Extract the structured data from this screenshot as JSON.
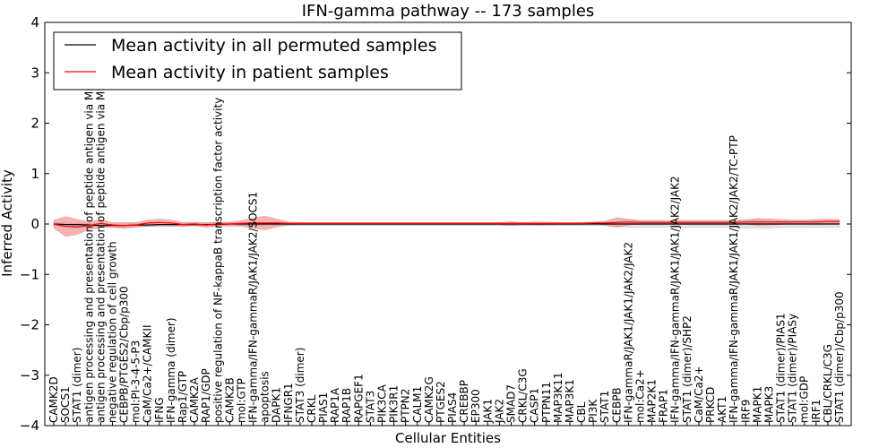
{
  "chart_data": {
    "type": "line",
    "title": "IFN-gamma pathway -- 173 samples",
    "xlabel": "Cellular Entities",
    "ylabel": "Inferred Activity",
    "ylim": [
      -4,
      4
    ],
    "yticks": [
      -4,
      -3,
      -2,
      -1,
      0,
      1,
      2,
      3,
      4
    ],
    "ytick_labels": [
      "−4",
      "−3",
      "−2",
      "−1",
      "0",
      "1",
      "2",
      "3",
      "4"
    ],
    "legend_position": "top-left",
    "categories": [
      "CAMK2D",
      "SOCS1",
      "STAT1 (dimer)",
      "antigen processing and presentation of peptide antigen via MHC class I",
      "antigen processing and presentation of peptide antigen via MHC class II",
      "negative regulation of cell growth",
      "CEBPB/PTGES2/Cbp/p300",
      "mol:PI-3-4-5-P3",
      "CaM/Ca2+/CAMKII",
      "IFNG",
      "IFN-gamma (dimer)",
      "Rap1/GTP",
      "CAMK2A",
      "RAP1/GDP",
      "positive regulation of NF-kappaB transcription factor activity",
      "CAMK2B",
      "mol:GTP",
      "IFN-gamma/IFN-gammaR/JAK1/JAK2/SOCS1",
      "apoptosis",
      "DAPK1",
      "IFNGR1",
      "STAT3 (dimer)",
      "CRKL",
      "PIAS1",
      "RAP1A",
      "RAP1B",
      "RAPGEF1",
      "STAT3",
      "PIK3CA",
      "PIK3R1",
      "PTPN2",
      "CALM1",
      "CAMK2G",
      "PTGES2",
      "PIAS4",
      "CREBBP",
      "EP300",
      "JAK1",
      "JAK2",
      "SMAD7",
      "CRKL/C3G",
      "CASP1",
      "PTPN11",
      "MAP3K11",
      "MAP3K1",
      "CBL",
      "PI3K",
      "STAT1",
      "CEBPB",
      "IFN-gammaR/JAK1/JAK1/JAK2/JAK2",
      "mol:Ca2+",
      "MAP2K1",
      "FRAP1",
      "IFN-gamma/IFN-gammaR/JAK1/JAK1/JAK2/JAK2",
      "STAT1 (dimer)/SHP2",
      "CaM/Ca2+",
      "PRKCD",
      "AKT1",
      "IFN-gamma/IFN-gammaR/JAK1/JAK1/JAK2/JAK2/TC-PTP",
      "IRF9",
      "MAPK1",
      "MAPK3",
      "STAT1 (dimer)/PIAS1",
      "STAT1 (dimer)/PIASy",
      "mol:GDP",
      "IRF1",
      "CBL/CRKL/C3G",
      "STAT1 (dimer)/Cbp/p300"
    ],
    "series": [
      {
        "name": "Mean activity in all permuted samples",
        "color": "#000000",
        "band_color": "#cccccc",
        "values": [
          0.0,
          -0.01,
          -0.01,
          -0.02,
          -0.03,
          -0.03,
          -0.03,
          -0.02,
          -0.02,
          -0.01,
          -0.01,
          -0.01,
          -0.01,
          -0.01,
          -0.01,
          0.0,
          0.0,
          0.0,
          0.0,
          0.0,
          0.0,
          0.0,
          0.0,
          0.0,
          0.0,
          0.0,
          0.0,
          0.0,
          0.0,
          0.0,
          0.0,
          0.0,
          0.0,
          0.0,
          0.0,
          0.0,
          0.0,
          0.0,
          0.0,
          0.0,
          0.0,
          0.0,
          0.0,
          0.0,
          0.0,
          0.0,
          0.0,
          0.0,
          0.0,
          0.0,
          0.0,
          0.0,
          0.0,
          0.0,
          0.0,
          0.0,
          0.0,
          0.0,
          0.0,
          0.0,
          0.0,
          0.0,
          0.0,
          0.0,
          0.0,
          0.0,
          0.0,
          0.0
        ],
        "band": [
          0.03,
          0.03,
          0.03,
          0.03,
          0.03,
          0.03,
          0.03,
          0.03,
          0.03,
          0.03,
          0.03,
          0.03,
          0.03,
          0.03,
          0.03,
          0.03,
          0.03,
          0.03,
          0.03,
          0.03,
          0.03,
          0.03,
          0.03,
          0.03,
          0.03,
          0.03,
          0.03,
          0.03,
          0.03,
          0.03,
          0.03,
          0.03,
          0.03,
          0.03,
          0.03,
          0.03,
          0.03,
          0.03,
          0.03,
          0.03,
          0.03,
          0.03,
          0.03,
          0.03,
          0.03,
          0.03,
          0.03,
          0.03,
          0.05,
          0.06,
          0.06,
          0.06,
          0.06,
          0.06,
          0.06,
          0.06,
          0.06,
          0.06,
          0.06,
          0.08,
          0.08,
          0.08,
          0.06,
          0.06,
          0.06,
          0.06,
          0.06,
          0.06
        ]
      },
      {
        "name": "Mean activity in patient samples",
        "color": "#ff0000",
        "band_color": "#f08080",
        "values": [
          0.0,
          -0.05,
          -0.06,
          -0.03,
          0.01,
          -0.02,
          -0.03,
          -0.02,
          0.02,
          0.03,
          0.02,
          -0.01,
          0.0,
          -0.02,
          0.0,
          0.0,
          0.01,
          0.02,
          0.02,
          0.02,
          0.01,
          0.01,
          0.01,
          0.01,
          0.01,
          0.01,
          0.01,
          0.01,
          0.01,
          0.01,
          0.01,
          0.01,
          0.01,
          0.01,
          0.01,
          0.01,
          0.01,
          0.01,
          0.01,
          0.01,
          0.01,
          0.01,
          0.01,
          0.01,
          0.01,
          0.01,
          0.02,
          0.02,
          0.03,
          0.04,
          0.03,
          0.03,
          0.03,
          0.03,
          0.03,
          0.03,
          0.03,
          0.03,
          0.03,
          0.04,
          0.04,
          0.04,
          0.04,
          0.04,
          0.04,
          0.04,
          0.05,
          0.05
        ],
        "band": [
          0.08,
          0.2,
          0.15,
          0.08,
          0.08,
          0.05,
          0.06,
          0.05,
          0.06,
          0.07,
          0.06,
          0.04,
          0.03,
          0.05,
          0.04,
          0.04,
          0.06,
          0.1,
          0.14,
          0.08,
          0.03,
          0.02,
          0.02,
          0.02,
          0.02,
          0.02,
          0.02,
          0.02,
          0.02,
          0.02,
          0.02,
          0.02,
          0.02,
          0.02,
          0.02,
          0.02,
          0.02,
          0.02,
          0.02,
          0.04,
          0.02,
          0.03,
          0.03,
          0.02,
          0.02,
          0.02,
          0.02,
          0.04,
          0.1,
          0.06,
          0.04,
          0.04,
          0.04,
          0.04,
          0.04,
          0.04,
          0.04,
          0.04,
          0.04,
          0.04,
          0.07,
          0.06,
          0.05,
          0.04,
          0.04,
          0.05,
          0.05,
          0.04
        ]
      }
    ]
  }
}
